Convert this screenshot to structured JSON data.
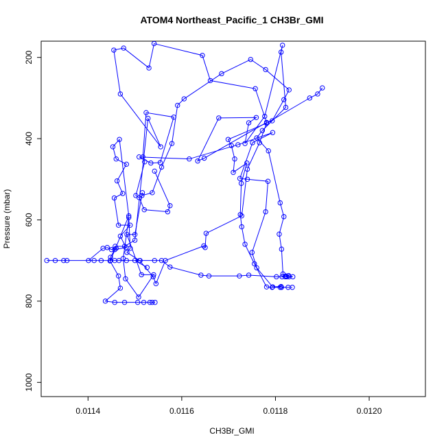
{
  "chart_data": {
    "type": "line",
    "title": "ATOM4 Northeast_Pacific_1 CH3Br_GMI",
    "xlabel": "CH3Br_GMI",
    "ylabel": "Pressure (mbar)",
    "xlim": [
      0.0113,
      0.01212
    ],
    "ylim": [
      1035,
      160
    ],
    "y_reversed": true,
    "x_ticks": [
      {
        "value": 0.0114,
        "label": "0.0114"
      },
      {
        "value": 0.0116,
        "label": "0.0116"
      },
      {
        "value": 0.0118,
        "label": "0.0118"
      },
      {
        "value": 0.012,
        "label": "0.0120"
      }
    ],
    "y_ticks": [
      {
        "value": 200,
        "label": "200"
      },
      {
        "value": 400,
        "label": "400"
      },
      {
        "value": 600,
        "label": "600"
      },
      {
        "value": 800,
        "label": "800"
      },
      {
        "value": 1000,
        "label": "1000"
      }
    ],
    "grid": false,
    "legend": "none",
    "series_color": "#0000ff",
    "series": [
      {
        "points": [
          [
            0.011543,
            803
          ],
          [
            0.011537,
            803
          ],
          [
            0.011532,
            803
          ],
          [
            0.011519,
            803
          ],
          [
            0.011506,
            803
          ],
          [
            0.011478,
            803
          ],
          [
            0.011457,
            803
          ],
          [
            0.011437,
            800
          ],
          [
            0.011469,
            768
          ],
          [
            0.011465,
            738
          ],
          [
            0.011447,
            701
          ],
          [
            0.011448,
            692
          ],
          [
            0.011457,
            673
          ],
          [
            0.011481,
            668
          ],
          [
            0.011469,
            640
          ],
          [
            0.01149,
            613
          ],
          [
            0.011465,
            613
          ],
          [
            0.011456,
            546
          ],
          [
            0.011474,
            535
          ],
          [
            0.011462,
            504
          ],
          [
            0.011482,
            463
          ],
          [
            0.01146,
            450
          ],
          [
            0.011453,
            420
          ],
          [
            0.011467,
            402
          ],
          [
            0.011487,
            590
          ],
          [
            0.011448,
            700
          ],
          [
            0.011466,
            700
          ],
          [
            0.011457,
            700
          ],
          [
            0.011482,
            700
          ],
          [
            0.011511,
            700
          ],
          [
            0.011542,
            700
          ],
          [
            0.011557,
            700
          ],
          [
            0.011575,
            716
          ],
          [
            0.011641,
            736
          ],
          [
            0.011658,
            738
          ],
          [
            0.011723,
            738
          ],
          [
            0.011743,
            736
          ],
          [
            0.011802,
            740
          ],
          [
            0.011814,
            740
          ],
          [
            0.011821,
            740
          ],
          [
            0.011824,
            740
          ],
          [
            0.011829,
            740
          ],
          [
            0.011837,
            740
          ],
          [
            0.011828,
            737
          ],
          [
            0.011822,
            738
          ],
          [
            0.011816,
            733
          ],
          [
            0.011813,
            672
          ],
          [
            0.011808,
            635
          ],
          [
            0.011818,
            592
          ],
          [
            0.01181,
            558
          ],
          [
            0.011785,
            430
          ],
          [
            0.01176,
            398
          ],
          [
            0.011772,
            380
          ],
          [
            0.011822,
            323
          ],
          [
            0.011812,
            187
          ],
          [
            0.011815,
            170
          ],
          [
            0.011777,
            345
          ],
          [
            0.011735,
            412
          ],
          [
            0.011743,
            361
          ],
          [
            0.011759,
            348
          ],
          [
            0.011679,
            349
          ],
          [
            0.011634,
            455
          ],
          [
            0.011648,
            448
          ],
          [
            0.011781,
            360
          ],
          [
            0.011757,
            277
          ],
          [
            0.011661,
            257
          ],
          [
            0.011644,
            195
          ],
          [
            0.011541,
            166
          ],
          [
            0.01153,
            226
          ],
          [
            0.011476,
            177
          ],
          [
            0.011455,
            182
          ],
          [
            0.011469,
            290
          ],
          [
            0.011555,
            420
          ],
          [
            0.011528,
            350
          ],
          [
            0.0115,
            650
          ],
          [
            0.011478,
            665
          ],
          [
            0.011458,
            665
          ],
          [
            0.01146,
            670
          ],
          [
            0.01145,
            673
          ],
          [
            0.011441,
            668
          ],
          [
            0.011432,
            670
          ],
          [
            0.011401,
            700
          ],
          [
            0.011348,
            700
          ],
          [
            0.01133,
            700
          ],
          [
            0.011312,
            700
          ],
          [
            0.011355,
            700
          ],
          [
            0.011413,
            700
          ],
          [
            0.011428,
            700
          ],
          [
            0.0115,
            700
          ],
          [
            0.011526,
            717
          ]
        ]
      },
      {
        "points": [
          [
            0.011542,
            480
          ],
          [
            0.011575,
            565
          ],
          [
            0.01157,
            580
          ],
          [
            0.01152,
            575
          ],
          [
            0.011509,
            545
          ],
          [
            0.011502,
            540
          ],
          [
            0.011521,
            457
          ],
          [
            0.011517,
            445
          ],
          [
            0.011524,
            336
          ],
          [
            0.011583,
            347
          ],
          [
            0.011554,
            459
          ],
          [
            0.011534,
            460
          ],
          [
            0.011509,
            445
          ],
          [
            0.011616,
            450
          ],
          [
            0.01172,
            415
          ],
          [
            0.011794,
            385
          ],
          [
            0.011751,
            410
          ],
          [
            0.011724,
            498
          ],
          [
            0.01174,
            500
          ],
          [
            0.011784,
            505
          ],
          [
            0.011779,
            580
          ],
          [
            0.01175,
            680
          ],
          [
            0.01176,
            718
          ],
          [
            0.011794,
            765
          ],
          [
            0.011812,
            764
          ],
          [
            0.011813,
            766
          ],
          [
            0.011827,
            766
          ],
          [
            0.011836,
            766
          ],
          [
            0.01181,
            766
          ],
          [
            0.011793,
            766
          ],
          [
            0.011781,
            765
          ],
          [
            0.011755,
            708
          ],
          [
            0.011735,
            660
          ],
          [
            0.011728,
            617
          ],
          [
            0.011725,
            587
          ],
          [
            0.011727,
            510
          ],
          [
            0.011739,
            460
          ],
          [
            0.01171,
            483
          ],
          [
            0.011713,
            450
          ],
          [
            0.011706,
            417
          ],
          [
            0.011699,
            402
          ],
          [
            0.011793,
            356
          ],
          [
            0.011818,
            304
          ],
          [
            0.011829,
            280
          ],
          [
            0.011779,
            230
          ],
          [
            0.011747,
            205
          ],
          [
            0.011685,
            240
          ],
          [
            0.011605,
            302
          ],
          [
            0.011591,
            318
          ],
          [
            0.011579,
            412
          ],
          [
            0.011557,
            470
          ],
          [
            0.011537,
            533
          ],
          [
            0.011515,
            540
          ],
          [
            0.011516,
            533
          ],
          [
            0.0115,
            636
          ],
          [
            0.011483,
            636
          ],
          [
            0.011514,
            735
          ],
          [
            0.01154,
            735
          ],
          [
            0.011508,
            790
          ],
          [
            0.01148,
            745
          ],
          [
            0.011475,
            695
          ],
          [
            0.011487,
            594
          ],
          [
            0.01149,
            670
          ],
          [
            0.011483,
            680
          ],
          [
            0.01151,
            700
          ],
          [
            0.011539,
            740
          ],
          [
            0.011545,
            757
          ],
          [
            0.011565,
            700
          ],
          [
            0.011647,
            664
          ],
          [
            0.01165,
            668
          ],
          [
            0.011652,
            633
          ],
          [
            0.011728,
            590
          ],
          [
            0.01174,
            475
          ],
          [
            0.011766,
            410
          ],
          [
            0.011781,
            362
          ],
          [
            0.011873,
            300
          ],
          [
            0.01189,
            290
          ],
          [
            0.0119,
            275
          ]
        ]
      }
    ]
  }
}
